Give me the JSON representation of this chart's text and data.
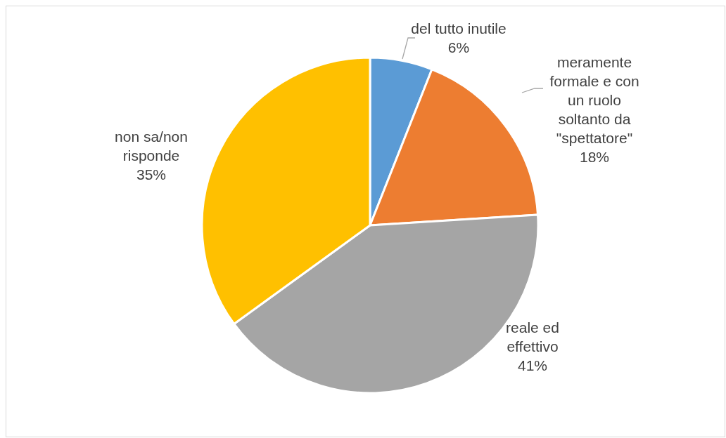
{
  "chart_data": {
    "type": "pie",
    "categories": [
      "del tutto inutile",
      "meramente formale e con un ruolo soltanto da \"spettatore\"",
      "reale ed effettivo",
      "non sa/non risponde"
    ],
    "values": [
      6,
      18,
      41,
      35
    ],
    "colors": [
      "#5b9bd5",
      "#ed7d31",
      "#a5a5a5",
      "#ffc000"
    ],
    "value_labels": [
      "6%",
      "18%",
      "41%",
      "35%"
    ]
  }
}
